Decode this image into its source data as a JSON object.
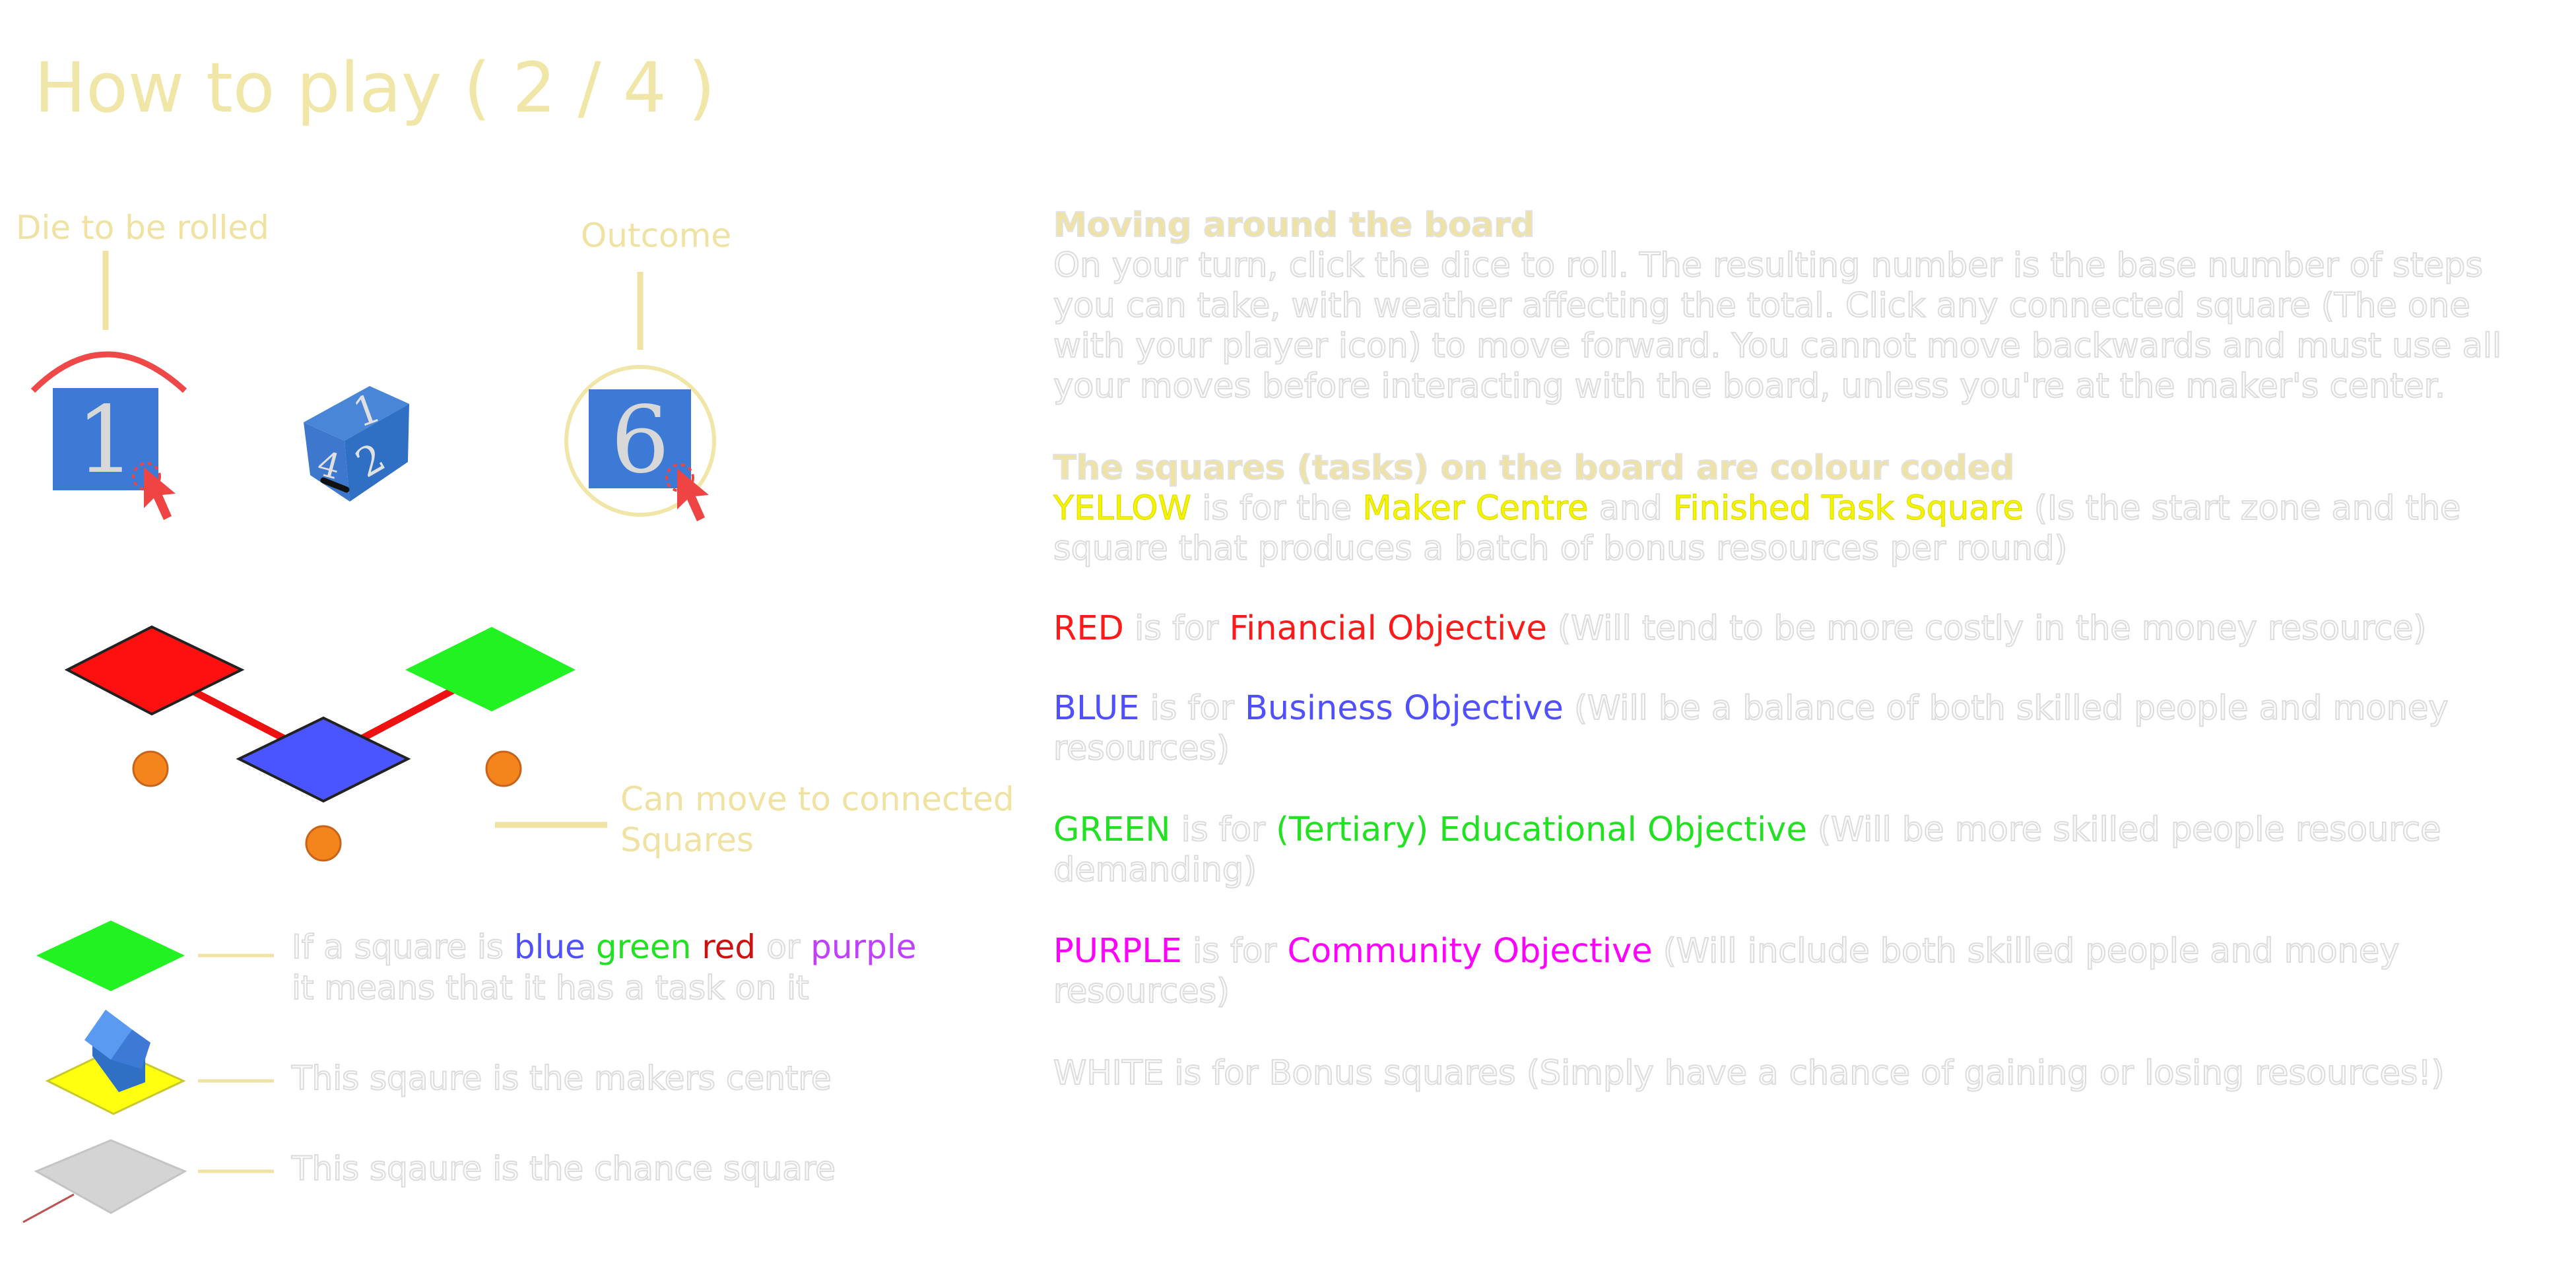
{
  "header": {
    "title": "How to play ( 2 / 4 )"
  },
  "dice": {
    "die_label": "Die to be rolled",
    "outcome_label": "Outcome",
    "die_face": "1",
    "outcome_face": "6",
    "rolling_faces": [
      "1",
      "2",
      "4"
    ]
  },
  "board": {
    "connect_label": "Can move to connected Squares",
    "connect_line1": "Can move to connected",
    "connect_line2": "Squares"
  },
  "legend": {
    "coloured": {
      "prefix": "If a square is",
      "blue": "blue",
      "green": "green",
      "red": "red",
      "or": "or",
      "purple": "purple",
      "line2": "it means that it has a task on it"
    },
    "makers": "This sqaure is the makers centre",
    "chance": "This sqaure is the chance square"
  },
  "rules": {
    "moving_heading": "Moving around the board",
    "moving_lines": [
      "On your turn, click the dice to roll. The resulting number is the base number of steps",
      "you can take, with weather affecting the total. Click any connected square (The one",
      "with your player icon) to move forward. You cannot move backwards and must use all",
      "your moves before interacting with the board, unless you're at the maker's center."
    ],
    "squares_heading": "The squares (tasks) on the board are colour coded",
    "yellow": {
      "name": "YELLOW",
      "is_for": "is for the",
      "obj1": "Maker Centre",
      "and": "and",
      "obj2": "Finished Task Square",
      "desc_line1": "(Is the start zone and the",
      "desc_line2": "square that produces a batch of bonus resources per round)"
    },
    "red": {
      "name": "RED",
      "is_for": "is for",
      "obj": "Financial Objective",
      "desc": "(Will tend to be more costly in the money resource)"
    },
    "blue": {
      "name": "BLUE",
      "is_for": "is for",
      "obj": "Business Objective",
      "desc_line1": "(Will be a balance of both skilled people and money",
      "desc_line2": "resources)"
    },
    "green": {
      "name": "GREEN",
      "is_for": "is for",
      "obj": "(Tertiary) Educational Objective",
      "desc_line1": "(Will be more skilled people resource",
      "desc_line2": "demanding)"
    },
    "purple": {
      "name": "PURPLE",
      "is_for": "is for",
      "obj": "Community Objective",
      "desc_line1": "(Will include both skilled people and money",
      "desc_line2": "resources)"
    },
    "white": "WHITE is for Bonus squares (Simply have a chance of gaining or losing resources!)"
  },
  "colors": {
    "accent_title": "#f0e6a8",
    "yellow": "#f4f400",
    "red": "#ff1a1a",
    "blue": "#5050ff",
    "green": "#22f122",
    "purple": "#ff00ff",
    "die_blue": "#3d7ad6"
  }
}
